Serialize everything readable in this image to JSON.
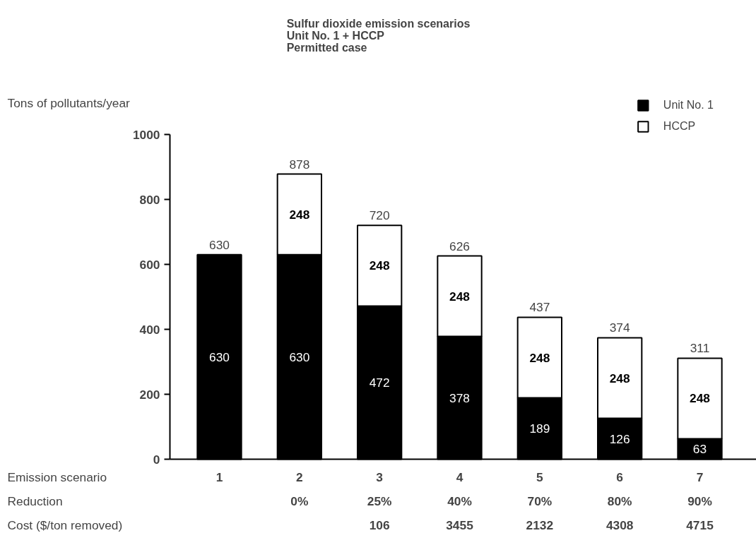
{
  "chart_data": {
    "type": "bar",
    "title": "Sulfur dioxide emission scenarios\nUnit No. 1 + HCCP\nPermitted case",
    "xlabel": "Emission scenario",
    "ylabel": "Tons of pollutants/year",
    "categories": [
      "1",
      "2",
      "3",
      "4",
      "5",
      "6",
      "7"
    ],
    "series": [
      {
        "name": "Unit No. 1",
        "color": "#000000",
        "values": [
          630,
          630,
          472,
          378,
          189,
          126,
          63
        ]
      },
      {
        "name": "HCCP",
        "color": "#ffffff",
        "values": [
          null,
          248,
          248,
          248,
          248,
          248,
          248
        ]
      }
    ],
    "stacked": true,
    "data_labels": true,
    "totals": [
      "630",
      "878",
      "720",
      "626",
      "437",
      "374",
      "311"
    ],
    "ylim": [
      0,
      1000
    ],
    "yticks": [
      0,
      200,
      400,
      600,
      800,
      1000
    ],
    "grid": false,
    "legend": "top right",
    "annotations": [
      "Reduction",
      "0%",
      "25%",
      "40%",
      "70%",
      "80%",
      "90%",
      "Cost ($/ton removed)",
      "106",
      "3455",
      "2132",
      "4308",
      "4715"
    ]
  }
}
